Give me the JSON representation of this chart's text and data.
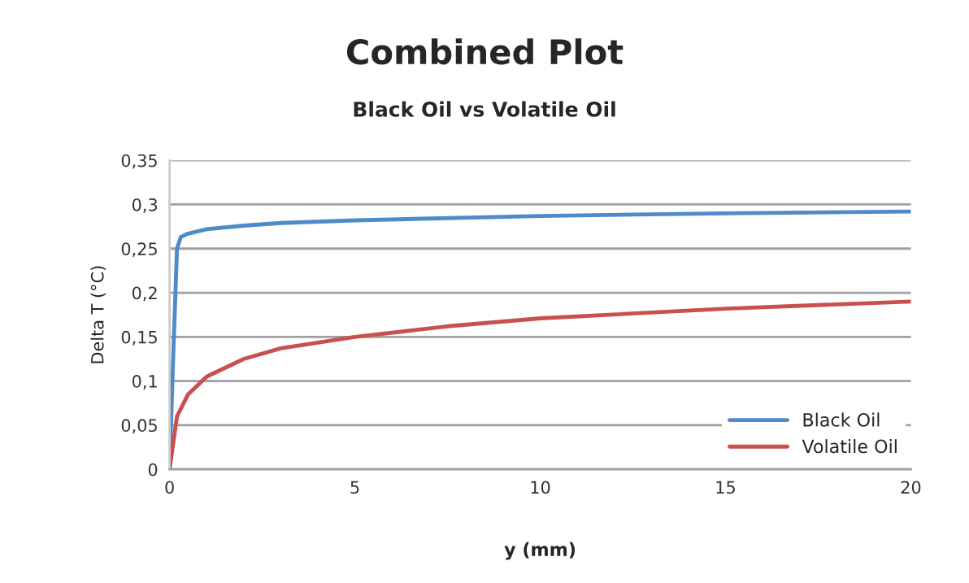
{
  "chart_data": {
    "type": "line",
    "title": "Combined Plot",
    "subtitle": "Black Oil vs Volatile Oil",
    "xlabel": "y (mm)",
    "ylabel": "Delta T (°C)",
    "xlim": [
      0,
      20
    ],
    "xticks": [
      0,
      5,
      10,
      15,
      20
    ],
    "ylim": [
      0,
      0.35
    ],
    "yticks": [
      {
        "value": 0,
        "label": "0"
      },
      {
        "value": 0.05,
        "label": "0,05"
      },
      {
        "value": 0.1,
        "label": "0,1"
      },
      {
        "value": 0.15,
        "label": "0,15"
      },
      {
        "value": 0.2,
        "label": "0,2"
      },
      {
        "value": 0.25,
        "label": "0,25"
      },
      {
        "value": 0.3,
        "label": "0,3"
      },
      {
        "value": 0.35,
        "label": "0,35"
      }
    ],
    "grid": "y",
    "legend": "bottom right",
    "marker": "none",
    "line_style": "solid",
    "series": [
      {
        "name": "Black Oil",
        "color": "#4f8bc9",
        "x": [
          0,
          0.1,
          0.2,
          0.3,
          0.5,
          1,
          2,
          3,
          5,
          10,
          15,
          20
        ],
        "values": [
          0,
          0.13,
          0.25,
          0.263,
          0.267,
          0.272,
          0.276,
          0.279,
          0.282,
          0.287,
          0.29,
          0.292
        ]
      },
      {
        "name": "Volatile Oil",
        "color": "#c9504d",
        "x": [
          0,
          0.2,
          0.5,
          1,
          2,
          3,
          5,
          7.5,
          10,
          15,
          20
        ],
        "values": [
          0,
          0.06,
          0.085,
          0.105,
          0.125,
          0.137,
          0.15,
          0.162,
          0.171,
          0.182,
          0.19
        ]
      }
    ]
  }
}
